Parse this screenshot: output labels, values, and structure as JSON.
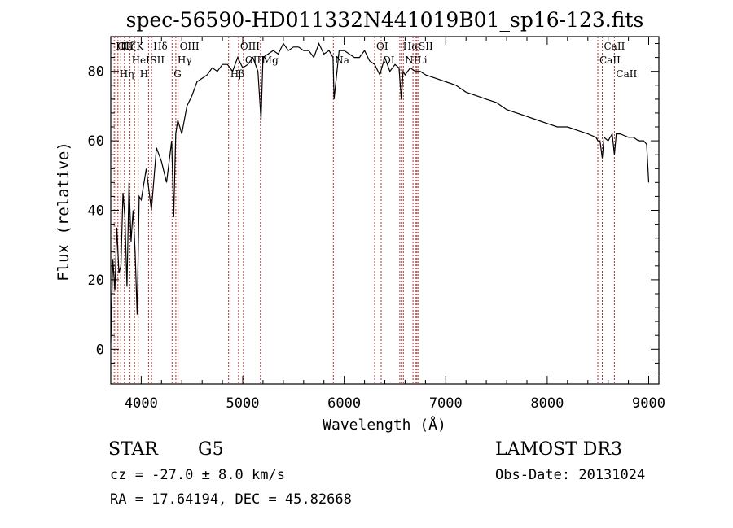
{
  "chart_data": {
    "type": "line",
    "title": "spec-56590-HD011332N441019B01_sp16-123.fits",
    "xlabel": "Wavelength (Å)",
    "ylabel": "Flux (relative)",
    "xlim": [
      3700,
      9100
    ],
    "ylim": [
      -10,
      90
    ],
    "x_ticks": [
      4000,
      5000,
      6000,
      7000,
      8000,
      9000
    ],
    "x_tick_labels": [
      "4000",
      "5000",
      "6000",
      "7000",
      "8000",
      "9000"
    ],
    "y_ticks": [
      0,
      20,
      40,
      60,
      80
    ],
    "y_tick_labels": [
      "0",
      "20",
      "40",
      "60",
      "80"
    ],
    "series": [
      {
        "name": "flux",
        "x": [
          3700,
          3720,
          3740,
          3760,
          3780,
          3800,
          3820,
          3840,
          3860,
          3880,
          3900,
          3920,
          3940,
          3960,
          3980,
          4000,
          4050,
          4100,
          4150,
          4200,
          4250,
          4300,
          4320,
          4340,
          4360,
          4400,
          4450,
          4500,
          4550,
          4600,
          4650,
          4700,
          4750,
          4800,
          4850,
          4900,
          4950,
          5000,
          5050,
          5100,
          5150,
          5180,
          5200,
          5250,
          5300,
          5350,
          5400,
          5450,
          5500,
          5550,
          5600,
          5650,
          5700,
          5750,
          5800,
          5850,
          5890,
          5900,
          5950,
          6000,
          6050,
          6100,
          6150,
          6200,
          6250,
          6300,
          6350,
          6400,
          6450,
          6500,
          6540,
          6563,
          6580,
          6600,
          6650,
          6700,
          6750,
          6800,
          6900,
          7000,
          7100,
          7200,
          7300,
          7400,
          7500,
          7600,
          7700,
          7800,
          7900,
          8000,
          8100,
          8200,
          8300,
          8400,
          8480,
          8500,
          8520,
          8542,
          8560,
          8600,
          8640,
          8662,
          8680,
          8720,
          8800,
          8850,
          8900,
          8950,
          8980,
          9000
        ],
        "values": [
          2,
          26,
          17,
          35,
          22,
          24,
          45,
          38,
          18,
          48,
          31,
          40,
          28,
          10,
          44,
          43,
          52,
          40,
          58,
          54,
          48,
          60,
          38,
          62,
          66,
          62,
          70,
          73,
          77,
          78,
          79,
          81,
          80,
          82,
          82,
          80,
          84,
          81,
          82,
          84,
          80,
          66,
          84,
          85,
          86,
          85,
          88,
          86,
          87,
          87,
          86,
          86,
          84,
          88,
          85,
          86,
          84,
          72,
          86,
          86,
          85,
          84,
          84,
          86,
          83,
          82,
          79,
          84,
          80,
          82,
          81,
          72,
          80,
          79,
          81,
          80,
          80,
          79,
          78,
          77,
          76,
          74,
          73,
          72,
          71,
          69,
          68,
          67,
          66,
          65,
          64,
          64,
          63,
          62,
          61,
          60,
          60,
          55,
          61,
          60,
          62,
          56,
          62,
          62,
          61,
          61,
          60,
          60,
          59,
          48
        ]
      }
    ],
    "lines": [
      {
        "x": 3734,
        "label": "Hθ"
      },
      {
        "x": 3750,
        "label": "OII"
      },
      {
        "x": 3771,
        "label": "Hη"
      },
      {
        "x": 3798,
        "label": "Hζ"
      },
      {
        "x": 3835,
        "label": "Hε"
      },
      {
        "x": 3889,
        "label": "HeI"
      },
      {
        "x": 3934,
        "label": "K"
      },
      {
        "x": 3970,
        "label": "H"
      },
      {
        "x": 4072,
        "label": "SII"
      },
      {
        "x": 4102,
        "label": "Hδ"
      },
      {
        "x": 4304,
        "label": "G"
      },
      {
        "x": 4341,
        "label": "Hγ"
      },
      {
        "x": 4363,
        "label": "OIII"
      },
      {
        "x": 4861,
        "label": "Hβ"
      },
      {
        "x": 4959,
        "label": "OIII"
      },
      {
        "x": 5007,
        "label": "OIII"
      },
      {
        "x": 5175,
        "label": "Mg"
      },
      {
        "x": 5893,
        "label": "Na"
      },
      {
        "x": 6300,
        "label": "OI"
      },
      {
        "x": 6364,
        "label": "OI"
      },
      {
        "x": 6548,
        "label": "NII"
      },
      {
        "x": 6563,
        "label": "Hα"
      },
      {
        "x": 6583,
        "label": "NII"
      },
      {
        "x": 6678,
        "label": "Li"
      },
      {
        "x": 6707,
        "label": "SII"
      },
      {
        "x": 6717,
        "label": "SII"
      },
      {
        "x": 6731,
        "label": "SII"
      },
      {
        "x": 8498,
        "label": "CaII"
      },
      {
        "x": 8542,
        "label": "CaII"
      },
      {
        "x": 8662,
        "label": "CaII"
      }
    ],
    "line_label_groups": [
      {
        "text": "Hθ",
        "anchor_x": 3734
      },
      {
        "text": "OII",
        "anchor_x": 3750
      },
      {
        "text": "Hζ",
        "anchor_x": 3798
      },
      {
        "text": "K",
        "anchor_x": 3934
      },
      {
        "text": "Hδ",
        "anchor_x": 4102
      },
      {
        "text": "OIII",
        "anchor_x": 4363
      },
      {
        "text": "OIII",
        "anchor_x": 4959
      },
      {
        "text": "OI",
        "anchor_x": 6300
      },
      {
        "text": "Hα",
        "anchor_x": 6563
      },
      {
        "text": "SII",
        "anchor_x": 6717
      },
      {
        "text": "CaII",
        "anchor_x": 8542
      },
      {
        "text": "HeI",
        "anchor_x": 3889
      },
      {
        "text": "SII",
        "anchor_x": 4072
      },
      {
        "text": "Hγ",
        "anchor_x": 4341
      },
      {
        "text": "OIII",
        "anchor_x": 5007
      },
      {
        "text": "Mg",
        "anchor_x": 5175
      },
      {
        "text": "Na",
        "anchor_x": 5893
      },
      {
        "text": "NII",
        "anchor_x": 6583
      },
      {
        "text": "Li",
        "anchor_x": 6707
      },
      {
        "text": "CaII",
        "anchor_x": 8498
      },
      {
        "text": "OI",
        "anchor_x": 6364
      },
      {
        "text": "Hη",
        "anchor_x": 3771
      },
      {
        "text": "H",
        "anchor_x": 3970
      },
      {
        "text": "G",
        "anchor_x": 4304
      },
      {
        "text": "Hβ",
        "anchor_x": 4861
      },
      {
        "text": "CaII",
        "anchor_x": 8662
      }
    ],
    "line_color": "#b03030"
  },
  "footer": {
    "object_type": "STAR",
    "subclass": "G5",
    "survey": "LAMOST DR3",
    "redshift": "cz = -27.0 ± 8.0 km/s",
    "obs_date": "Obs-Date: 20131024",
    "coords": "RA =  17.64194, DEC =  45.82668"
  }
}
